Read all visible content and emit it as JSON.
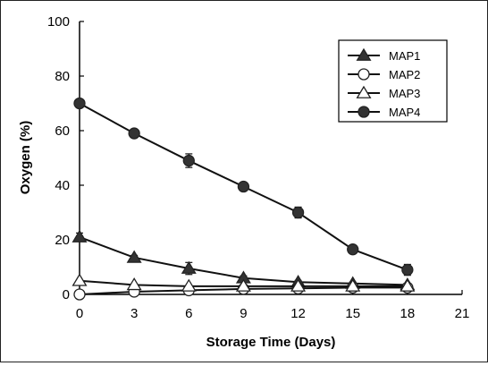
{
  "chart_data": {
    "type": "line",
    "title": "",
    "xlabel": "Storage Time (Days)",
    "ylabel": "Oxygen (%)",
    "xlim": [
      0,
      21
    ],
    "ylim": [
      0,
      100
    ],
    "xticks": [
      0,
      3,
      6,
      9,
      12,
      15,
      18,
      21
    ],
    "yticks": [
      0,
      20,
      40,
      60,
      80,
      100
    ],
    "x": [
      0,
      3,
      6,
      9,
      12,
      15,
      18
    ],
    "grid": false,
    "legend_position": "top-right",
    "series": [
      {
        "name": "MAP1",
        "marker": "triangle",
        "fill": "#333333",
        "values": [
          21,
          13.5,
          9.5,
          6,
          4.5,
          4,
          3.5
        ],
        "errors": [
          1.5,
          0.8,
          2.2,
          0.8,
          0.6,
          0.5,
          0.5
        ]
      },
      {
        "name": "MAP2",
        "marker": "circle",
        "fill": "#ffffff",
        "values": [
          0,
          1,
          1.5,
          2,
          2.2,
          2.5,
          2.5
        ],
        "errors": [
          0,
          0,
          0,
          0,
          0,
          0,
          0
        ]
      },
      {
        "name": "MAP3",
        "marker": "triangle",
        "fill": "#ffffff",
        "values": [
          5,
          3.5,
          3,
          3,
          3,
          3,
          3
        ],
        "errors": [
          0,
          0,
          0,
          0,
          0,
          0,
          0
        ]
      },
      {
        "name": "MAP4",
        "marker": "circle",
        "fill": "#333333",
        "values": [
          70,
          59,
          49,
          39.5,
          30,
          16.5,
          9
        ],
        "errors": [
          1.5,
          1,
          2.5,
          1.2,
          2,
          1,
          2
        ]
      }
    ]
  }
}
